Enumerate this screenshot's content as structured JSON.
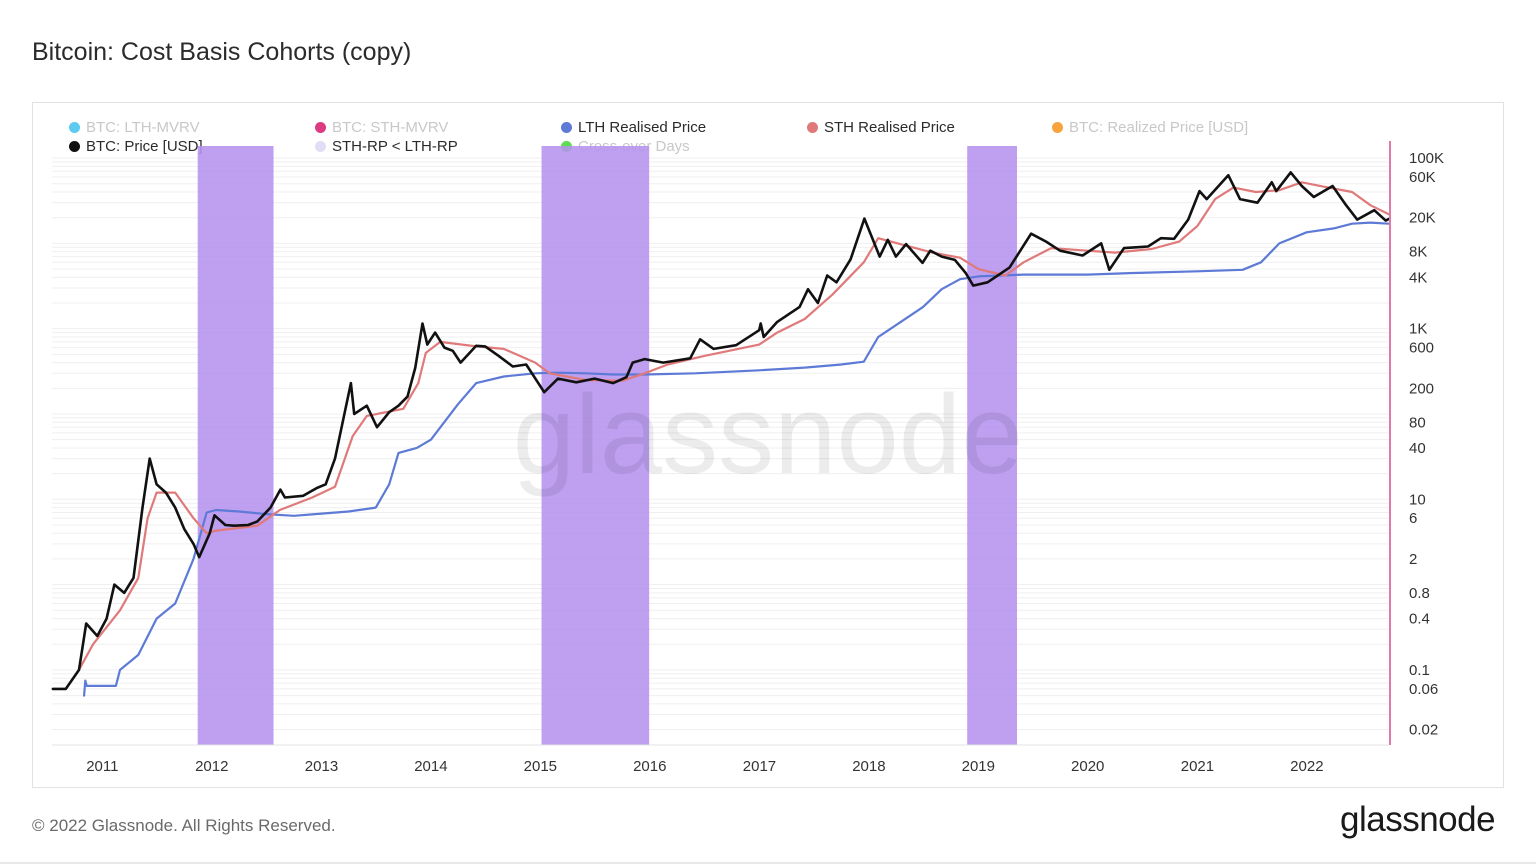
{
  "page": {
    "title": "Bitcoin: Cost Basis Cohorts (copy)",
    "copyright": "© 2022 Glassnode. All Rights Reserved.",
    "brand_logo": "glassnode",
    "watermark": "glassnode"
  },
  "legend": [
    {
      "label": "BTC: LTH-MVRV",
      "color": "#3fc1ef",
      "active": false
    },
    {
      "label": "BTC: STH-MVRV",
      "color": "#d7196b",
      "active": false
    },
    {
      "label": "LTH Realised Price",
      "color": "#5d7ad6",
      "active": true
    },
    {
      "label": "STH Realised Price",
      "color": "#e07a7a",
      "active": true
    },
    {
      "label": "BTC: Realized Price [USD]",
      "color": "#f7931a",
      "active": false
    },
    {
      "label": "BTC: Price [USD]",
      "color": "#111111",
      "active": true
    },
    {
      "label": "STH-RP < LTH-RP",
      "color": "#e3dcf5",
      "active": true
    },
    {
      "label": "Cross-over Days",
      "color": "#43d634",
      "active": false
    }
  ],
  "chart_data": {
    "type": "line",
    "title": "Bitcoin: Cost Basis Cohorts (copy)",
    "y_scale": "log",
    "x_ticks": [
      "2011",
      "2012",
      "2013",
      "2014",
      "2015",
      "2016",
      "2017",
      "2018",
      "2019",
      "2020",
      "2021",
      "2022"
    ],
    "y_ticks": [
      "100K",
      "60K",
      "20K",
      "8K",
      "4K",
      "1K",
      "600",
      "200",
      "80",
      "40",
      "10",
      "6",
      "2",
      "0.8",
      "0.4",
      "0.1",
      "0.06",
      "0.02"
    ],
    "series": [
      {
        "name": "BTC: Price [USD]",
        "color": "#111111",
        "points": [
          [
            "2010-07-20",
            0.06
          ],
          [
            "2010-09-01",
            0.06
          ],
          [
            "2010-10-15",
            0.1
          ],
          [
            "2010-11-08",
            0.35
          ],
          [
            "2010-12-15",
            0.25
          ],
          [
            "2011-01-15",
            0.4
          ],
          [
            "2011-02-10",
            1
          ],
          [
            "2011-03-15",
            0.8
          ],
          [
            "2011-04-15",
            1.2
          ],
          [
            "2011-05-15",
            8
          ],
          [
            "2011-06-08",
            30
          ],
          [
            "2011-07-01",
            15
          ],
          [
            "2011-08-01",
            12
          ],
          [
            "2011-09-01",
            8
          ],
          [
            "2011-10-01",
            4.5
          ],
          [
            "2011-11-01",
            3
          ],
          [
            "2011-11-20",
            2.1
          ],
          [
            "2011-12-25",
            4
          ],
          [
            "2012-01-10",
            6.5
          ],
          [
            "2012-02-15",
            5
          ],
          [
            "2012-03-15",
            4.9
          ],
          [
            "2012-05-01",
            5
          ],
          [
            "2012-06-01",
            5.5
          ],
          [
            "2012-07-15",
            8
          ],
          [
            "2012-08-17",
            13
          ],
          [
            "2012-09-01",
            10.5
          ],
          [
            "2012-11-01",
            11
          ],
          [
            "2012-12-15",
            13.5
          ],
          [
            "2013-01-15",
            15
          ],
          [
            "2013-02-15",
            30
          ],
          [
            "2013-04-09",
            230
          ],
          [
            "2013-04-20",
            100
          ],
          [
            "2013-06-01",
            125
          ],
          [
            "2013-07-05",
            70
          ],
          [
            "2013-08-15",
            105
          ],
          [
            "2013-09-15",
            125
          ],
          [
            "2013-10-15",
            160
          ],
          [
            "2013-11-10",
            350
          ],
          [
            "2013-12-04",
            1150
          ],
          [
            "2013-12-20",
            650
          ],
          [
            "2014-01-15",
            900
          ],
          [
            "2014-02-15",
            600
          ],
          [
            "2014-03-15",
            550
          ],
          [
            "2014-04-10",
            400
          ],
          [
            "2014-06-01",
            630
          ],
          [
            "2014-07-01",
            620
          ],
          [
            "2014-08-15",
            480
          ],
          [
            "2014-10-01",
            360
          ],
          [
            "2014-11-15",
            380
          ],
          [
            "2015-01-14",
            180
          ],
          [
            "2015-03-01",
            260
          ],
          [
            "2015-05-01",
            235
          ],
          [
            "2015-07-01",
            260
          ],
          [
            "2015-09-01",
            230
          ],
          [
            "2015-10-15",
            270
          ],
          [
            "2015-11-05",
            400
          ],
          [
            "2015-12-15",
            440
          ],
          [
            "2016-02-15",
            400
          ],
          [
            "2016-05-15",
            450
          ],
          [
            "2016-06-17",
            750
          ],
          [
            "2016-08-01",
            580
          ],
          [
            "2016-10-15",
            640
          ],
          [
            "2016-12-31",
            960
          ],
          [
            "2017-01-05",
            1150
          ],
          [
            "2017-01-15",
            800
          ],
          [
            "2017-03-01",
            1200
          ],
          [
            "2017-05-15",
            1800
          ],
          [
            "2017-06-12",
            2900
          ],
          [
            "2017-07-15",
            2000
          ],
          [
            "2017-08-15",
            4200
          ],
          [
            "2017-09-15",
            3500
          ],
          [
            "2017-11-01",
            6500
          ],
          [
            "2017-12-17",
            19500
          ],
          [
            "2018-02-06",
            7000
          ],
          [
            "2018-03-05",
            11000
          ],
          [
            "2018-04-01",
            7000
          ],
          [
            "2018-05-05",
            9800
          ],
          [
            "2018-06-29",
            5900
          ],
          [
            "2018-07-25",
            8200
          ],
          [
            "2018-09-01",
            7000
          ],
          [
            "2018-10-15",
            6400
          ],
          [
            "2018-11-20",
            4500
          ],
          [
            "2018-12-15",
            3200
          ],
          [
            "2019-02-01",
            3500
          ],
          [
            "2019-04-15",
            5200
          ],
          [
            "2019-06-26",
            13000
          ],
          [
            "2019-08-15",
            10500
          ],
          [
            "2019-10-01",
            8200
          ],
          [
            "2019-12-15",
            7200
          ],
          [
            "2020-02-15",
            10000
          ],
          [
            "2020-03-13",
            4900
          ],
          [
            "2020-05-01",
            8800
          ],
          [
            "2020-07-20",
            9200
          ],
          [
            "2020-09-01",
            11500
          ],
          [
            "2020-10-15",
            11300
          ],
          [
            "2020-12-01",
            19000
          ],
          [
            "2021-01-08",
            41000
          ],
          [
            "2021-02-01",
            33000
          ],
          [
            "2021-04-14",
            63000
          ],
          [
            "2021-05-23",
            33000
          ],
          [
            "2021-07-20",
            30000
          ],
          [
            "2021-09-06",
            52000
          ],
          [
            "2021-09-21",
            41000
          ],
          [
            "2021-11-08",
            68000
          ],
          [
            "2021-12-15",
            47000
          ],
          [
            "2022-01-24",
            35000
          ],
          [
            "2022-03-28",
            47000
          ],
          [
            "2022-05-12",
            28000
          ],
          [
            "2022-06-18",
            19000
          ],
          [
            "2022-08-14",
            24500
          ],
          [
            "2022-09-21",
            18500
          ],
          [
            "2022-10-01",
            19300
          ]
        ]
      },
      {
        "name": "STH Realised Price",
        "color": "#e07a7a",
        "points": [
          [
            "2010-10-15",
            0.1
          ],
          [
            "2010-12-01",
            0.2
          ],
          [
            "2011-03-01",
            0.5
          ],
          [
            "2011-05-01",
            1.2
          ],
          [
            "2011-06-01",
            6
          ],
          [
            "2011-07-01",
            12
          ],
          [
            "2011-09-01",
            12
          ],
          [
            "2011-11-01",
            6
          ],
          [
            "2011-12-15",
            4
          ],
          [
            "2012-01-15",
            4.3
          ],
          [
            "2012-06-01",
            4.9
          ],
          [
            "2012-08-15",
            7.5
          ],
          [
            "2012-12-01",
            10.5
          ],
          [
            "2013-02-15",
            14
          ],
          [
            "2013-04-15",
            55
          ],
          [
            "2013-06-01",
            95
          ],
          [
            "2013-10-01",
            115
          ],
          [
            "2013-11-20",
            230
          ],
          [
            "2013-12-15",
            520
          ],
          [
            "2014-02-01",
            700
          ],
          [
            "2014-06-01",
            620
          ],
          [
            "2014-09-01",
            580
          ],
          [
            "2014-12-15",
            400
          ],
          [
            "2015-02-01",
            300
          ],
          [
            "2015-06-01",
            250
          ],
          [
            "2015-10-01",
            245
          ],
          [
            "2015-12-15",
            300
          ],
          [
            "2016-03-01",
            380
          ],
          [
            "2016-07-01",
            480
          ],
          [
            "2016-12-31",
            650
          ],
          [
            "2017-03-01",
            900
          ],
          [
            "2017-06-01",
            1300
          ],
          [
            "2017-09-01",
            2500
          ],
          [
            "2017-12-15",
            6000
          ],
          [
            "2018-02-01",
            11500
          ],
          [
            "2018-05-01",
            9500
          ],
          [
            "2018-08-01",
            7800
          ],
          [
            "2018-11-01",
            6800
          ],
          [
            "2019-01-01",
            5000
          ],
          [
            "2019-04-01",
            4200
          ],
          [
            "2019-06-01",
            6000
          ],
          [
            "2019-09-01",
            8800
          ],
          [
            "2019-12-31",
            8200
          ],
          [
            "2020-04-01",
            7800
          ],
          [
            "2020-08-01",
            8600
          ],
          [
            "2020-11-01",
            10500
          ],
          [
            "2021-01-01",
            16000
          ],
          [
            "2021-03-01",
            33000
          ],
          [
            "2021-05-01",
            45000
          ],
          [
            "2021-07-15",
            40000
          ],
          [
            "2021-10-01",
            42000
          ],
          [
            "2021-12-15",
            52000
          ],
          [
            "2022-03-01",
            46000
          ],
          [
            "2022-06-01",
            40000
          ],
          [
            "2022-08-01",
            28000
          ],
          [
            "2022-10-01",
            22000
          ]
        ]
      },
      {
        "name": "LTH Realised Price",
        "color": "#5d7ad6",
        "points": [
          [
            "2010-11-01",
            0.05
          ],
          [
            "2010-11-05",
            0.075
          ],
          [
            "2010-11-10",
            0.065
          ],
          [
            "2011-02-15",
            0.065
          ],
          [
            "2011-03-01",
            0.1
          ],
          [
            "2011-05-01",
            0.15
          ],
          [
            "2011-07-01",
            0.4
          ],
          [
            "2011-09-01",
            0.6
          ],
          [
            "2011-11-01",
            2
          ],
          [
            "2011-12-15",
            7
          ],
          [
            "2012-01-15",
            7.5
          ],
          [
            "2012-04-01",
            7.2
          ],
          [
            "2012-07-01",
            6.7
          ],
          [
            "2012-10-01",
            6.4
          ],
          [
            "2013-01-01",
            6.8
          ],
          [
            "2013-04-01",
            7.2
          ],
          [
            "2013-07-01",
            8
          ],
          [
            "2013-08-15",
            15
          ],
          [
            "2013-09-15",
            35
          ],
          [
            "2013-11-15",
            40
          ],
          [
            "2014-01-01",
            50
          ],
          [
            "2014-04-01",
            130
          ],
          [
            "2014-06-01",
            230
          ],
          [
            "2014-09-01",
            275
          ],
          [
            "2014-12-15",
            300
          ],
          [
            "2015-03-01",
            305
          ],
          [
            "2015-06-01",
            300
          ],
          [
            "2015-09-01",
            290
          ],
          [
            "2015-12-15",
            290
          ],
          [
            "2016-06-01",
            300
          ],
          [
            "2016-12-31",
            325
          ],
          [
            "2017-06-01",
            350
          ],
          [
            "2017-10-01",
            380
          ],
          [
            "2017-12-15",
            410
          ],
          [
            "2018-02-01",
            800
          ],
          [
            "2018-04-01",
            1100
          ],
          [
            "2018-07-01",
            1800
          ],
          [
            "2018-09-01",
            2900
          ],
          [
            "2018-11-01",
            3800
          ],
          [
            "2019-01-01",
            4100
          ],
          [
            "2019-06-01",
            4300
          ],
          [
            "2019-12-31",
            4300
          ],
          [
            "2020-06-01",
            4500
          ],
          [
            "2020-12-31",
            4700
          ],
          [
            "2021-06-01",
            4900
          ],
          [
            "2021-08-01",
            6000
          ],
          [
            "2021-10-01",
            10000
          ],
          [
            "2021-12-31",
            13500
          ],
          [
            "2022-04-01",
            15000
          ],
          [
            "2022-06-01",
            17000
          ],
          [
            "2022-08-01",
            17500
          ],
          [
            "2022-10-01",
            17000
          ]
        ]
      }
    ],
    "shaded_ranges": [
      {
        "name": "STH-RP < LTH-RP",
        "start": "2011-11-15",
        "end": "2012-07-25"
      },
      {
        "name": "STH-RP < LTH-RP",
        "start": "2015-01-05",
        "end": "2015-12-30"
      },
      {
        "name": "STH-RP < LTH-RP",
        "start": "2018-11-25",
        "end": "2019-05-10"
      }
    ],
    "grid": true,
    "legend_position": "top"
  }
}
